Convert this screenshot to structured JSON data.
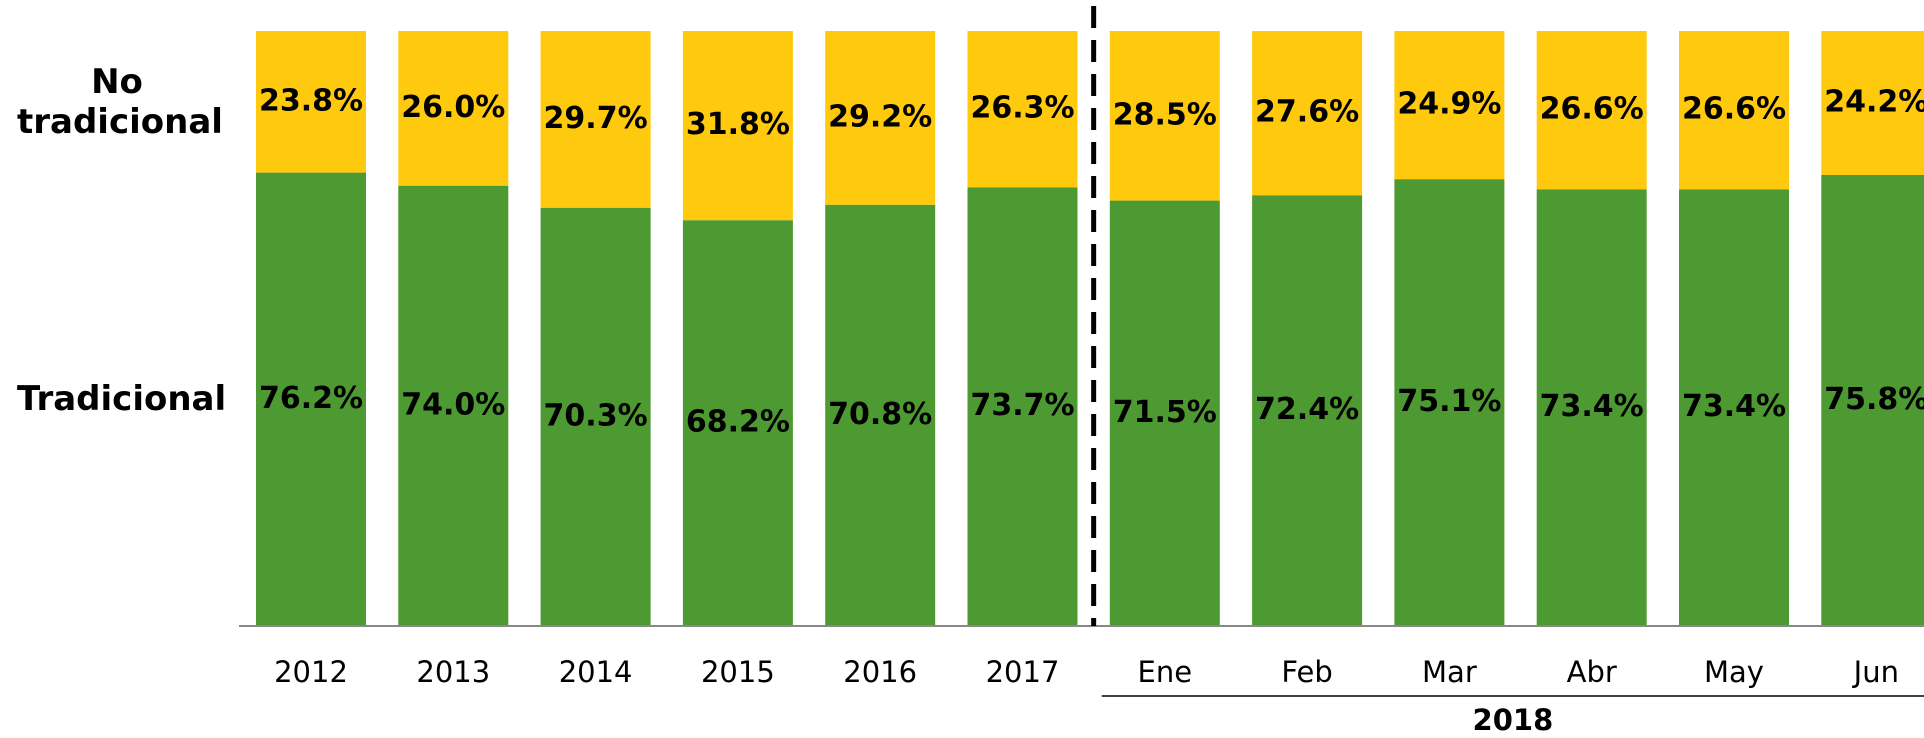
{
  "chart_data": {
    "type": "stacked_bar_100",
    "categories": [
      "2012",
      "2013",
      "2014",
      "2015",
      "2016",
      "2017",
      "Ene",
      "Feb",
      "Mar",
      "Abr",
      "May",
      "Jun"
    ],
    "category_group": "2018",
    "ylim": [
      0,
      100
    ],
    "series": [
      {
        "name": "Tradicional",
        "color": "#4e9a32",
        "values": [
          76.2,
          74.0,
          70.3,
          68.2,
          70.8,
          73.7,
          71.5,
          72.4,
          75.1,
          73.4,
          73.4,
          75.8
        ],
        "value_labels": [
          "76.2%",
          "74.0%",
          "70.3%",
          "68.2%",
          "70.8%",
          "73.7%",
          "71.5%",
          "72.4%",
          "75.1%",
          "73.4%",
          "73.4%",
          "75.8%"
        ]
      },
      {
        "name": "No tradicional",
        "color": "#ffc90e",
        "values": [
          23.8,
          26.0,
          29.7,
          31.8,
          29.2,
          26.3,
          28.5,
          27.6,
          24.9,
          26.6,
          26.6,
          24.2
        ],
        "value_labels": [
          "23.8%",
          "26.0%",
          "29.7%",
          "31.8%",
          "29.2%",
          "26.3%",
          "28.5%",
          "27.6%",
          "24.9%",
          "26.6%",
          "26.6%",
          "24.2%"
        ]
      }
    ]
  }
}
